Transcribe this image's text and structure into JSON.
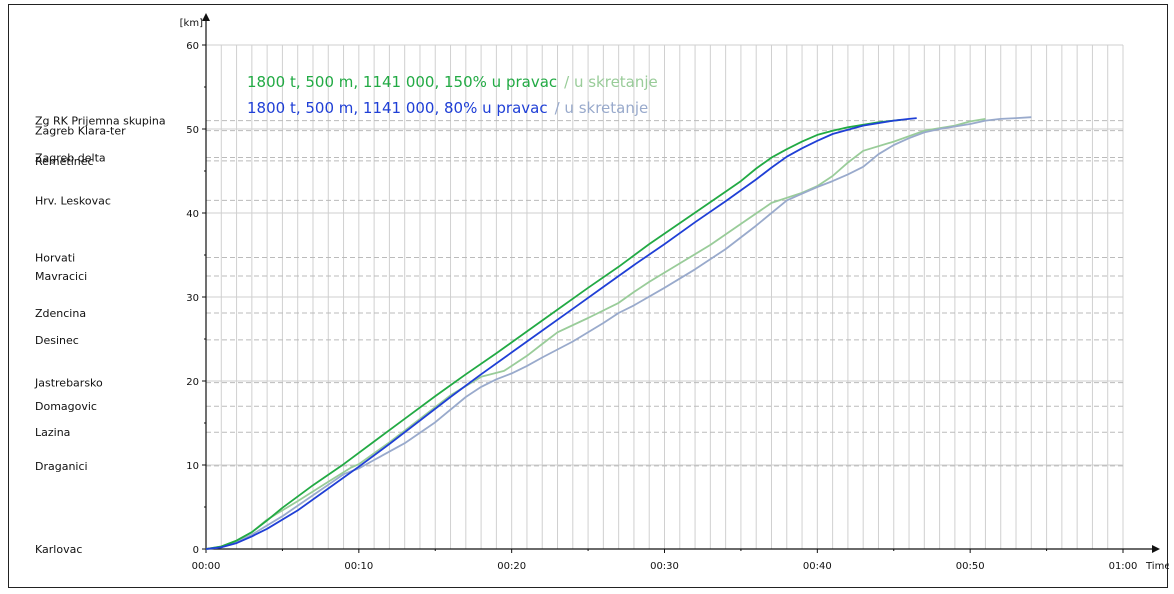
{
  "chart_data": {
    "type": "line",
    "ylabel": "[km]",
    "xlabel": "Time",
    "ylim": [
      0,
      60
    ],
    "xlim_minutes": [
      0,
      60
    ],
    "x_tick_labels": [
      "00:00",
      "00:10",
      "00:20",
      "00:30",
      "00:40",
      "00:50",
      "01:00"
    ],
    "y_tick_labels": [
      "0",
      "10",
      "20",
      "30",
      "40",
      "50",
      "60"
    ],
    "grid": true,
    "stations": [
      {
        "name": "Karlovac",
        "km": 0
      },
      {
        "name": "Draganici",
        "km": 9.9
      },
      {
        "name": "Lazina",
        "km": 13.9
      },
      {
        "name": "Domagovic",
        "km": 17
      },
      {
        "name": "Jastrebarsko",
        "km": 19.8
      },
      {
        "name": "Desinec",
        "km": 24.9
      },
      {
        "name": "Zdencina",
        "km": 28.1
      },
      {
        "name": "Mavracici",
        "km": 32.5
      },
      {
        "name": "Horvati",
        "km": 34.7
      },
      {
        "name": "Hrv. Leskovac",
        "km": 41.5
      },
      {
        "name": "Zagreb delta",
        "km": 46.6
      },
      {
        "name": "Remetinec",
        "km": 46.2
      },
      {
        "name": "Zagreb Klara-ter",
        "km": 49.8
      },
      {
        "name": "Zg RK Prijemna skupina",
        "km": 51
      }
    ],
    "legend": [
      {
        "main": "1800 t, 500 m, 1141 000, 150% u pravac",
        "secondary": "/ u skretanje",
        "color": "#22aa44",
        "secondary_color": "#99cc99"
      },
      {
        "main": "1800 t, 500 m, 1141 000,   80% u pravac",
        "secondary": "/ u skretanje",
        "color": "#1f3fd6",
        "secondary_color": "#99aacc"
      }
    ],
    "series": [
      {
        "color": "#99cc99",
        "x": [
          0,
          1,
          2,
          3,
          4,
          6,
          8,
          9.5,
          10,
          12,
          14,
          16,
          18,
          19.5,
          20,
          21,
          22,
          23,
          25,
          27,
          28,
          29,
          31,
          33,
          35,
          37,
          39,
          40,
          41,
          42,
          43,
          45,
          47,
          49,
          50,
          51
        ],
        "y": [
          0,
          0.3,
          1,
          2,
          3.5,
          5.7,
          8,
          9.7,
          10.1,
          12.7,
          15.5,
          18.3,
          20.5,
          21.2,
          21.8,
          23,
          24.4,
          25.8,
          27.5,
          29.3,
          30.6,
          31.8,
          34,
          36.2,
          38.7,
          41.2,
          42.4,
          43.2,
          44.4,
          46,
          47.4,
          48.5,
          49.8,
          50.4,
          50.9,
          51.2
        ]
      },
      {
        "color": "#99aacc",
        "x": [
          0,
          1,
          2,
          3,
          5,
          7,
          9,
          10,
          11,
          13,
          15,
          17,
          18,
          19,
          20,
          21,
          22,
          24,
          26,
          27,
          28,
          30,
          32,
          34,
          36,
          38,
          39,
          40,
          41,
          42,
          43,
          44,
          45,
          46,
          47,
          48,
          49,
          50,
          51,
          52,
          53,
          54
        ],
        "y": [
          0,
          0.2,
          0.8,
          1.7,
          3.9,
          6.4,
          8.9,
          9.6,
          10.6,
          12.6,
          15.1,
          18.1,
          19.3,
          20.2,
          20.9,
          21.8,
          22.8,
          24.7,
          26.9,
          28.1,
          29,
          31.1,
          33.3,
          35.7,
          38.5,
          41.5,
          42.3,
          43.1,
          43.8,
          44.6,
          45.5,
          47,
          48.1,
          48.9,
          49.6,
          50,
          50.3,
          50.6,
          51,
          51.2,
          51.3,
          51.4
        ]
      },
      {
        "color": "#22aa44",
        "x": [
          0,
          1,
          2,
          3,
          4,
          5,
          7,
          9,
          11,
          13,
          15,
          17,
          19,
          21,
          23,
          25,
          27,
          29,
          31,
          33,
          35,
          36,
          37,
          38,
          39,
          40,
          41,
          42,
          43,
          44,
          45,
          45.5
        ],
        "y": [
          0,
          0.3,
          1,
          2,
          3.4,
          4.9,
          7.6,
          10.1,
          12.8,
          15.5,
          18.2,
          20.8,
          23.3,
          25.9,
          28.5,
          31.1,
          33.6,
          36.3,
          38.8,
          41.3,
          43.8,
          45.3,
          46.6,
          47.6,
          48.5,
          49.3,
          49.8,
          50.2,
          50.5,
          50.8,
          51,
          51.1
        ]
      },
      {
        "color": "#1f3fd6",
        "x": [
          0,
          1,
          2,
          3,
          4,
          6,
          8,
          10,
          12,
          14,
          16,
          18,
          20,
          22,
          24,
          26,
          28,
          30,
          32,
          34,
          36,
          37,
          38,
          39,
          40,
          41,
          42,
          43,
          44,
          45,
          46,
          46.5
        ],
        "y": [
          0,
          0.2,
          0.7,
          1.5,
          2.4,
          4.6,
          7.2,
          9.8,
          12.5,
          15.3,
          18.1,
          20.8,
          23.4,
          26,
          28.6,
          31.2,
          33.8,
          36.3,
          38.9,
          41.4,
          44,
          45.4,
          46.7,
          47.7,
          48.6,
          49.4,
          49.9,
          50.4,
          50.7,
          51,
          51.2,
          51.3
        ]
      }
    ]
  }
}
